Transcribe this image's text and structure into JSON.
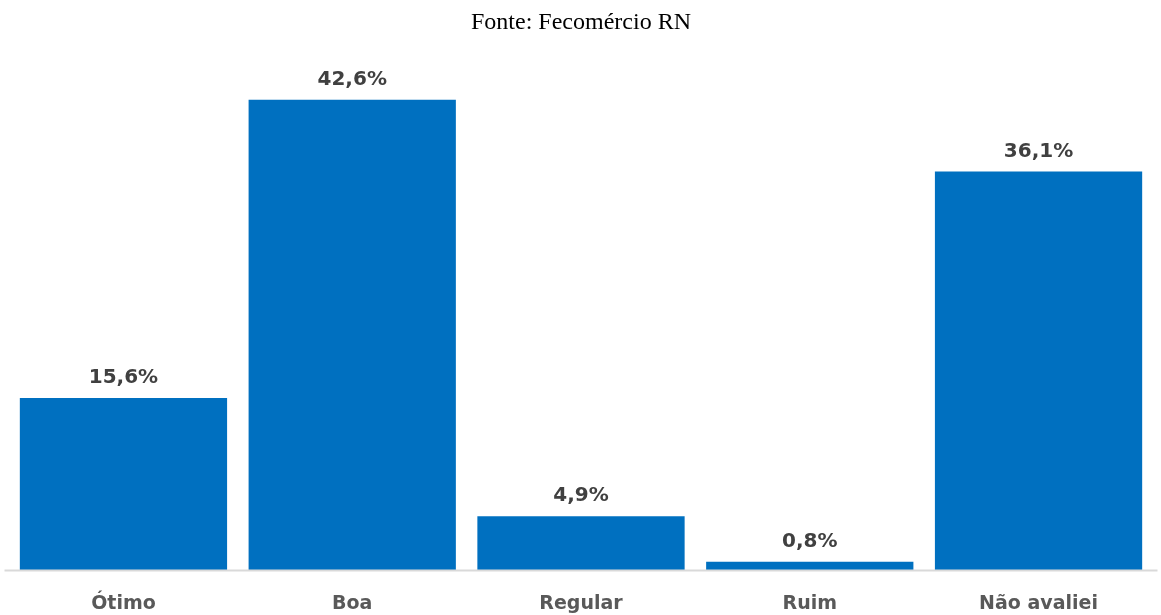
{
  "chart_data": {
    "type": "bar",
    "annotations": [
      "Fonte: Fecomércio RN"
    ],
    "categories": [
      "Ótimo",
      "Boa",
      "Regular",
      "Ruim",
      "Não avaliei"
    ],
    "values": [
      15.6,
      42.6,
      4.9,
      0.8,
      36.1
    ],
    "value_labels": [
      "15,6%",
      "42,6%",
      "4,9%",
      "0,8%",
      "36,1%"
    ],
    "color": "#0070c0"
  }
}
